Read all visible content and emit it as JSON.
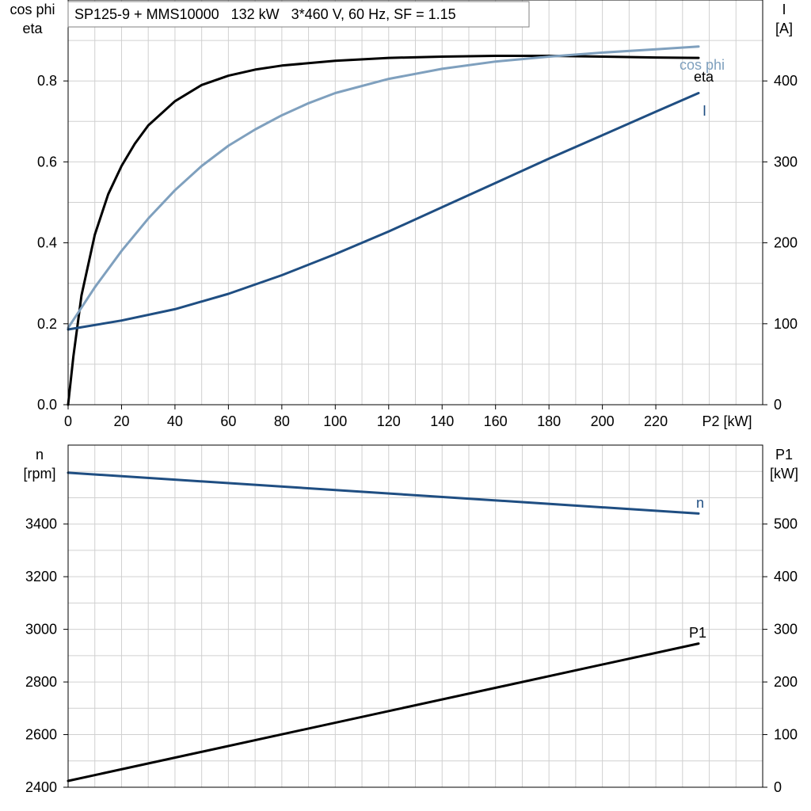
{
  "chart_data": [
    {
      "type": "line",
      "title": "SP125-9 + MMS10000   132 kW   3*460 V, 60 Hz, SF = 1.15",
      "xlabel": "P2 [kW]",
      "xlim": [
        0,
        260
      ],
      "xticks": [
        0,
        20,
        40,
        60,
        80,
        100,
        120,
        140,
        160,
        180,
        200,
        220
      ],
      "ylabel_left": [
        "cos phi",
        "eta"
      ],
      "ylim_left": [
        0,
        1.0
      ],
      "yticks_left": [
        0.0,
        0.2,
        0.4,
        0.6,
        0.8
      ],
      "ylabel_right": [
        "I",
        "[A]"
      ],
      "ylim_right": [
        0,
        500
      ],
      "yticks_right": [
        0,
        100,
        200,
        300,
        400
      ],
      "grid": true,
      "series": [
        {
          "name": "eta",
          "axis": "left",
          "color": "#000000",
          "x": [
            0,
            2,
            5,
            10,
            15,
            20,
            25,
            30,
            40,
            50,
            60,
            70,
            80,
            100,
            120,
            140,
            160,
            180,
            200,
            220,
            236
          ],
          "y": [
            0.0,
            0.12,
            0.27,
            0.42,
            0.52,
            0.59,
            0.645,
            0.69,
            0.75,
            0.79,
            0.813,
            0.828,
            0.838,
            0.85,
            0.857,
            0.86,
            0.862,
            0.862,
            0.86,
            0.858,
            0.857
          ]
        },
        {
          "name": "cos phi",
          "axis": "left",
          "color": "#7fa0be",
          "x": [
            0,
            5,
            10,
            20,
            30,
            40,
            50,
            60,
            70,
            80,
            90,
            100,
            120,
            140,
            160,
            180,
            200,
            220,
            236
          ],
          "y": [
            0.19,
            0.24,
            0.29,
            0.38,
            0.46,
            0.53,
            0.59,
            0.64,
            0.68,
            0.715,
            0.745,
            0.77,
            0.805,
            0.83,
            0.848,
            0.86,
            0.87,
            0.878,
            0.885
          ]
        },
        {
          "name": "I",
          "axis": "right",
          "color": "#1f4e82",
          "x": [
            0,
            20,
            40,
            60,
            80,
            100,
            120,
            140,
            160,
            180,
            200,
            220,
            236
          ],
          "y": [
            93,
            104,
            118,
            137,
            160,
            186,
            214,
            244,
            274,
            304,
            333,
            362,
            385
          ]
        }
      ]
    },
    {
      "type": "line",
      "title": "",
      "xlim": [
        0,
        260
      ],
      "ylabel_left": [
        "n",
        "[rpm]"
      ],
      "ylim_left": [
        2400,
        3700
      ],
      "yticks_left": [
        2400,
        2600,
        2800,
        3000,
        3200,
        3400
      ],
      "ylabel_right": [
        "P1",
        "[kW]"
      ],
      "ylim_right": [
        0,
        650
      ],
      "yticks_right": [
        0,
        100,
        200,
        300,
        400,
        500
      ],
      "grid": true,
      "series": [
        {
          "name": "n",
          "axis": "left",
          "color": "#1f4e82",
          "x": [
            0,
            236
          ],
          "y": [
            3595,
            3440
          ]
        },
        {
          "name": "P1",
          "axis": "right",
          "color": "#000000",
          "x": [
            0,
            236
          ],
          "y": [
            12,
            273
          ]
        }
      ]
    }
  ]
}
